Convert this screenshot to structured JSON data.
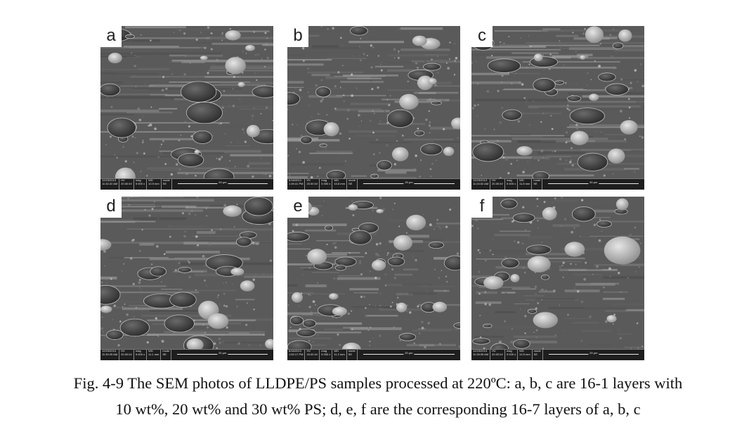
{
  "figure": {
    "panels": [
      {
        "letter": "a",
        "date": "12/23/2013",
        "time": "11:32:22 AM",
        "hv": "20.00 kV",
        "mag": "5 000 x",
        "wd": "10.9 mm",
        "mode": "SE",
        "scale": "20 μm"
      },
      {
        "letter": "b",
        "date": "6/18/2013",
        "time": "1:49:41 PM",
        "hv": "20.00 kV",
        "mag": "5 000 x",
        "wd": "10.8 mm",
        "mode": "SE",
        "scale": "20 μm"
      },
      {
        "letter": "c",
        "date": "12/23/2013",
        "time": "11:24:02 AM",
        "hv": "20.00 kV",
        "mag": "5 000 x",
        "wd": "11.8 mm",
        "mode": "SE",
        "scale": "20 μm"
      },
      {
        "letter": "d",
        "date": "12/23/2013",
        "time": "11:30:25 AM",
        "hv": "20.00 kV",
        "mag": "5 000 x",
        "wd": "11.1 mm",
        "mode": "SE",
        "scale": "20 μm"
      },
      {
        "letter": "e",
        "date": "6/18/2013",
        "time": "1:52:17 PM",
        "hv": "20.00 kV",
        "mag": "5 000 x",
        "wd": "11.2 mm",
        "mode": "SE",
        "scale": "20 μm"
      },
      {
        "letter": "f",
        "date": "12/23/2013",
        "time": "11:28:05 AM",
        "hv": "20.00 kV",
        "mag": "5 000 x",
        "wd": "12.5 mm",
        "mode": "SE",
        "scale": "20 μm"
      }
    ],
    "databar_labels": {
      "hv": "HV",
      "mag": "mag",
      "wd": "WD",
      "mode": "mode"
    },
    "caption": {
      "line1": "Fig. 4-9 The SEM photos of LLDPE/PS samples processed at 220ºC: a, b, c are 16-1 layers with",
      "line2": "10 wt%, 20 wt% and 30 wt% PS; d, e, f are the corresponding 16-7 layers of a, b, c"
    }
  }
}
